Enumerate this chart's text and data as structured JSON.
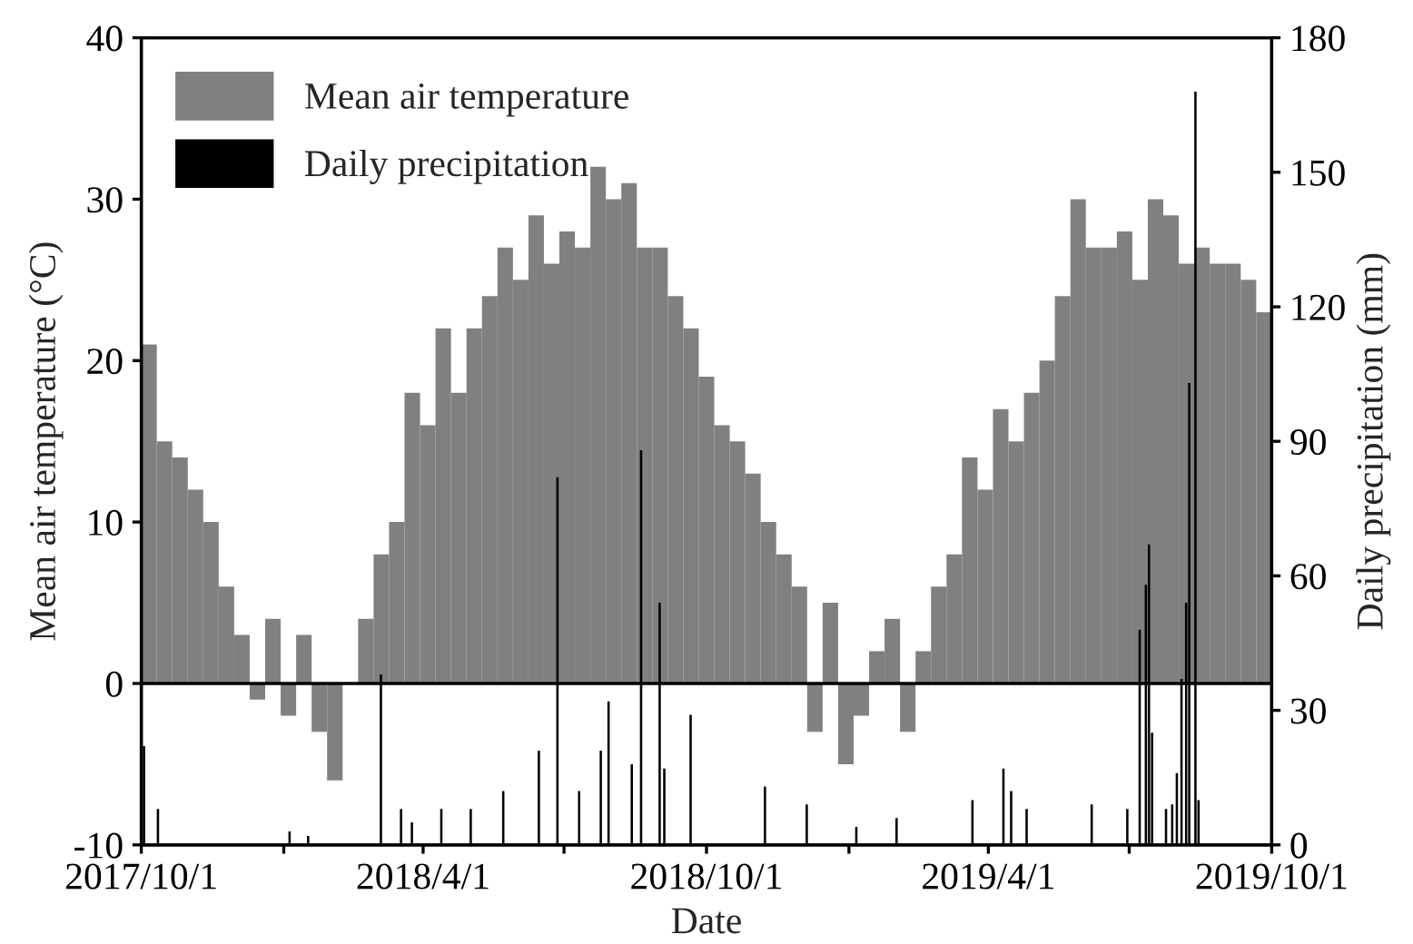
{
  "chart_data": {
    "type": "bar",
    "xlabel": "Date",
    "ylabel": "Mean air temperature (°C)",
    "y2label": "Daily precipitation (mm)",
    "xlim": [
      "2017-10-01",
      "2019-10-01"
    ],
    "xticks": [
      {
        "value": "2017-10-01",
        "label": "2017/10/1"
      },
      {
        "value": "2018-01-01",
        "label": null
      },
      {
        "value": "2018-04-01",
        "label": "2018/4/1"
      },
      {
        "value": "2018-07-01",
        "label": null
      },
      {
        "value": "2018-10-01",
        "label": "2018/10/1"
      },
      {
        "value": "2019-01-01",
        "label": null
      },
      {
        "value": "2019-04-01",
        "label": "2019/4/1"
      },
      {
        "value": "2019-07-01",
        "label": null
      },
      {
        "value": "2019-10-01",
        "label": "2019/10/1"
      }
    ],
    "ylim": [
      -10,
      40
    ],
    "yticks": [
      -10,
      0,
      10,
      20,
      30,
      40
    ],
    "y2lim": [
      0,
      180
    ],
    "y2ticks": [
      0,
      30,
      60,
      90,
      120,
      150,
      180
    ],
    "legend": "top left",
    "grid": false,
    "ref_lines": [
      {
        "axis": "y",
        "value": 0,
        "color": "#000000"
      }
    ],
    "series": [
      {
        "name": "Mean air temperature",
        "color": "#808080",
        "x": [
          "2017-10-01",
          "2017-10-11",
          "2017-10-21",
          "2017-10-31",
          "2017-11-10",
          "2017-11-20",
          "2017-11-30",
          "2017-12-10",
          "2017-12-20",
          "2017-12-30",
          "2018-01-09",
          "2018-01-19",
          "2018-01-29",
          "2018-02-08",
          "2018-02-18",
          "2018-02-28",
          "2018-03-10",
          "2018-03-20",
          "2018-03-30",
          "2018-04-09",
          "2018-04-19",
          "2018-04-29",
          "2018-05-09",
          "2018-05-19",
          "2018-05-29",
          "2018-06-08",
          "2018-06-18",
          "2018-06-28",
          "2018-07-08",
          "2018-07-18",
          "2018-07-28",
          "2018-08-07",
          "2018-08-17",
          "2018-08-27",
          "2018-09-06",
          "2018-09-16",
          "2018-09-26",
          "2018-10-06",
          "2018-10-16",
          "2018-10-26",
          "2018-11-05",
          "2018-11-15",
          "2018-11-25",
          "2018-12-05",
          "2018-12-15",
          "2018-12-25",
          "2019-01-04",
          "2019-01-14",
          "2019-01-24",
          "2019-02-03",
          "2019-02-13",
          "2019-02-23",
          "2019-03-05",
          "2019-03-15",
          "2019-03-25",
          "2019-04-04",
          "2019-04-14",
          "2019-04-24",
          "2019-05-04",
          "2019-05-14",
          "2019-05-24",
          "2019-06-03",
          "2019-06-13",
          "2019-06-23",
          "2019-07-03",
          "2019-07-13",
          "2019-07-23",
          "2019-08-02",
          "2019-08-12",
          "2019-08-22",
          "2019-09-01",
          "2019-09-11",
          "2019-09-21"
        ],
        "values": [
          21,
          15,
          14,
          12,
          10,
          6,
          3,
          -1,
          4,
          -2,
          3,
          -3,
          -6,
          0,
          4,
          8,
          10,
          18,
          16,
          22,
          18,
          22,
          24,
          27,
          25,
          29,
          26,
          28,
          27,
          32,
          30,
          31,
          27,
          27,
          24,
          22,
          19,
          16,
          15,
          13,
          10,
          8,
          6,
          -3,
          5,
          -5,
          -2,
          2,
          4,
          -3,
          2,
          6,
          8,
          14,
          12,
          17,
          15,
          18,
          20,
          24,
          30,
          27,
          27,
          28,
          25,
          30,
          29,
          26,
          27,
          26,
          26,
          25,
          23
        ]
      },
      {
        "name": "Daily precipitation",
        "axis": "y2",
        "color": "#000000",
        "x": [
          "2017-10-02",
          "2017-10-11",
          "2018-01-04",
          "2018-01-16",
          "2018-03-04",
          "2018-03-17",
          "2018-03-24",
          "2018-04-12",
          "2018-05-01",
          "2018-05-22",
          "2018-06-14",
          "2018-06-26",
          "2018-07-10",
          "2018-07-24",
          "2018-07-29",
          "2018-08-13",
          "2018-08-19",
          "2018-08-31",
          "2018-09-03",
          "2018-09-20",
          "2018-11-07",
          "2018-12-04",
          "2019-01-05",
          "2019-01-31",
          "2019-03-21",
          "2019-04-10",
          "2019-04-15",
          "2019-04-25",
          "2019-06-06",
          "2019-06-29",
          "2019-07-07",
          "2019-07-11",
          "2019-07-13",
          "2019-07-15",
          "2019-07-24",
          "2019-07-28",
          "2019-07-31",
          "2019-08-03",
          "2019-08-06",
          "2019-08-08",
          "2019-08-12",
          "2019-08-14"
        ],
        "values": [
          22,
          8,
          3,
          2,
          38,
          8,
          5,
          8,
          8,
          12,
          21,
          82,
          12,
          21,
          32,
          18,
          88,
          54,
          17,
          29,
          13,
          9,
          4,
          6,
          10,
          17,
          12,
          8,
          9,
          8,
          48,
          58,
          67,
          25,
          8,
          9,
          16,
          37,
          54,
          103,
          168,
          10
        ]
      }
    ]
  }
}
